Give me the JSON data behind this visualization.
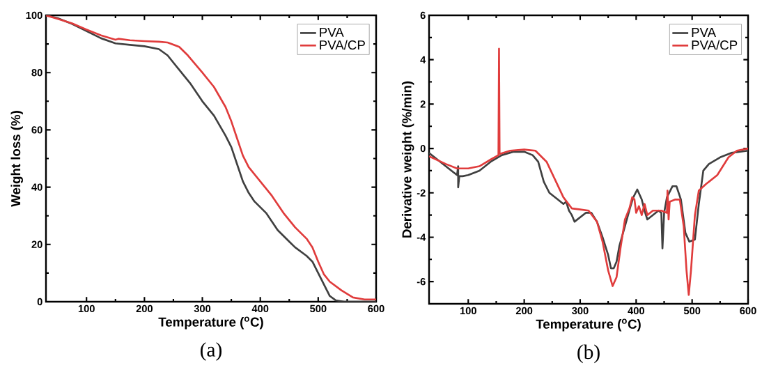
{
  "chart_data": [
    {
      "type": "line",
      "xlabel": "Temperature ($^{o}$C)",
      "ylabel": "Weight loss (%)",
      "annotations": [
        "(a)"
      ],
      "xlim": [
        30,
        600
      ],
      "ylim": [
        0,
        100
      ],
      "xticks": [
        100,
        200,
        300,
        400,
        500,
        600
      ],
      "yticks": [
        0,
        20,
        40,
        60,
        80,
        100
      ],
      "legend": "top right",
      "grid": false,
      "marker": "none",
      "line_style": "solid",
      "series": [
        {
          "name": "PVA",
          "color": "#404040",
          "x": [
            30,
            50,
            75,
            100,
            125,
            150,
            175,
            200,
            225,
            240,
            260,
            280,
            300,
            320,
            340,
            350,
            360,
            370,
            380,
            390,
            410,
            430,
            450,
            460,
            480,
            490,
            500,
            510,
            520,
            530,
            545,
            600
          ],
          "values": [
            100,
            99,
            97,
            94.5,
            92,
            90.2,
            89.7,
            89.2,
            88.2,
            86,
            81,
            76,
            70,
            65,
            58,
            54,
            48,
            42,
            38,
            35,
            31,
            25,
            21,
            19,
            16,
            14,
            10,
            6,
            2,
            0.5,
            0,
            0
          ]
        },
        {
          "name": "PVA/CP",
          "color": "#e03c3c",
          "x": [
            30,
            50,
            75,
            100,
            125,
            150,
            155,
            175,
            200,
            225,
            240,
            260,
            275,
            300,
            320,
            340,
            350,
            360,
            370,
            380,
            400,
            420,
            440,
            460,
            480,
            490,
            500,
            510,
            520,
            540,
            560,
            580,
            600
          ],
          "values": [
            100,
            98.8,
            97.2,
            95,
            93,
            91.5,
            91.8,
            91.3,
            91,
            90.8,
            90.5,
            89,
            86,
            80,
            75,
            68,
            63,
            57,
            51,
            47,
            42,
            37,
            31,
            26,
            22,
            19,
            14,
            9.5,
            7,
            4,
            1.5,
            0.8,
            0.8
          ]
        }
      ]
    },
    {
      "type": "line",
      "xlabel": "Temperature ($^{o}$C)",
      "ylabel": "Derivative weight (%/min)",
      "annotations": [
        "(b)"
      ],
      "xlim": [
        30,
        600
      ],
      "ylim": [
        -7,
        6
      ],
      "xticks": [
        100,
        200,
        300,
        400,
        500,
        600
      ],
      "yticks": [
        -6,
        -4,
        -2,
        0,
        2,
        4,
        6
      ],
      "legend": "top right",
      "grid": false,
      "marker": "none",
      "line_style": "solid",
      "series": [
        {
          "name": "PVA",
          "color": "#404040",
          "x": [
            30,
            50,
            70,
            80,
            82,
            82,
            84,
            90,
            100,
            120,
            140,
            160,
            180,
            200,
            215,
            225,
            235,
            245,
            260,
            270,
            275,
            280,
            285,
            290,
            300,
            310,
            320,
            330,
            340,
            350,
            355,
            360,
            365,
            370,
            380,
            390,
            395,
            402,
            410,
            415,
            420,
            430,
            440,
            445,
            447,
            450,
            455,
            465,
            472,
            480,
            488,
            495,
            505,
            512,
            520,
            530,
            550,
            570,
            600
          ],
          "values": [
            -0.2,
            -0.6,
            -1.0,
            -1.2,
            -0.8,
            -1.75,
            -1.25,
            -1.25,
            -1.2,
            -1.0,
            -0.6,
            -0.3,
            -0.15,
            -0.15,
            -0.3,
            -0.6,
            -1.5,
            -2.0,
            -2.3,
            -2.5,
            -2.4,
            -2.8,
            -3.0,
            -3.3,
            -3.1,
            -2.9,
            -2.9,
            -3.3,
            -4.0,
            -4.8,
            -5.4,
            -5.4,
            -5.1,
            -4.4,
            -3.5,
            -2.6,
            -2.2,
            -1.85,
            -2.3,
            -2.8,
            -3.2,
            -3.0,
            -2.8,
            -2.9,
            -4.5,
            -2.9,
            -2.2,
            -1.7,
            -1.7,
            -2.3,
            -3.8,
            -4.2,
            -4.1,
            -2.5,
            -1.0,
            -0.7,
            -0.4,
            -0.2,
            -0.1
          ]
        },
        {
          "name": "PVA/CP",
          "color": "#e03c3c",
          "x": [
            30,
            60,
            80,
            100,
            120,
            140,
            154,
            155,
            156,
            175,
            200,
            220,
            240,
            255,
            270,
            285,
            300,
            315,
            330,
            340,
            350,
            358,
            365,
            372,
            380,
            388,
            393,
            397,
            400,
            405,
            410,
            415,
            420,
            430,
            445,
            455,
            456,
            458,
            460,
            470,
            478,
            485,
            490,
            494,
            498,
            505,
            512,
            525,
            545,
            565,
            580,
            600
          ],
          "values": [
            -0.35,
            -0.7,
            -0.9,
            -0.9,
            -0.8,
            -0.5,
            -0.3,
            4.5,
            -0.25,
            -0.1,
            -0.05,
            -0.1,
            -0.6,
            -1.4,
            -2.2,
            -2.7,
            -2.75,
            -2.8,
            -3.3,
            -4.2,
            -5.5,
            -6.2,
            -5.8,
            -4.5,
            -3.2,
            -2.7,
            -2.2,
            -2.3,
            -2.9,
            -2.6,
            -3.0,
            -2.5,
            -3.0,
            -2.8,
            -2.8,
            -2.9,
            -1.9,
            -3.2,
            -2.4,
            -2.3,
            -2.3,
            -3.5,
            -5.5,
            -6.6,
            -5.5,
            -3.0,
            -1.9,
            -1.6,
            -1.2,
            -0.4,
            -0.1,
            0
          ]
        }
      ]
    }
  ]
}
